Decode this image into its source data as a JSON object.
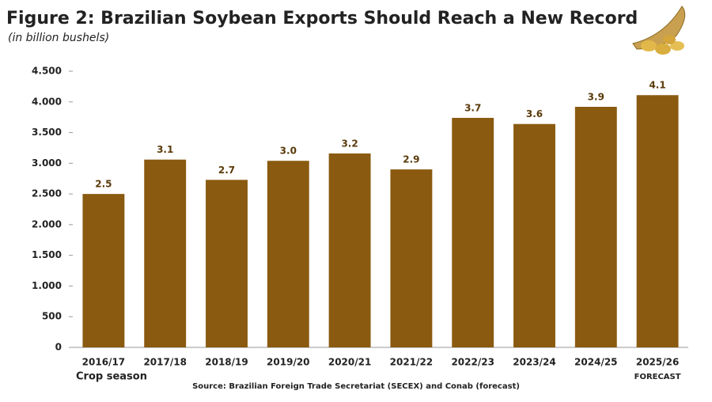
{
  "chart_data": {
    "type": "bar",
    "title": "Figure 2: Brazilian Soybean Exports Should Reach a New Record",
    "subtitle": "(in billion bushels)",
    "x_label": "Crop season",
    "annotation": "FORECAST",
    "source": "Source: Brazilian Foreign Trade Secretariat (SECEX) and Conab (forecast)",
    "categories": [
      "2016/17",
      "2017/18",
      "2018/19",
      "2019/20",
      "2020/21",
      "2021/22",
      "2022/23",
      "2023/24",
      "2024/25",
      "2025/26"
    ],
    "values": [
      2500,
      3060,
      2730,
      3040,
      3160,
      2900,
      3740,
      3640,
      3920,
      4110
    ],
    "value_labels": [
      "2.5",
      "3.1",
      "2.7",
      "3.0",
      "3.2",
      "2.9",
      "3.7",
      "3.6",
      "3.9",
      "4.1"
    ],
    "color": "#8a5a10",
    "ylim": [
      0,
      4500
    ],
    "yticks": [
      0,
      500,
      {
        "value": 1000,
        "label": "1.000"
      },
      {
        "value": 1500,
        "label": "1.500"
      },
      {
        "value": 2000,
        "label": "2.000"
      },
      {
        "value": 2500,
        "label": "2.500"
      },
      {
        "value": 3000,
        "label": "3.000"
      },
      {
        "value": 3500,
        "label": "3.500"
      },
      {
        "value": 4000,
        "label": "4.000"
      },
      {
        "value": 4500,
        "label": "4.500"
      }
    ]
  }
}
